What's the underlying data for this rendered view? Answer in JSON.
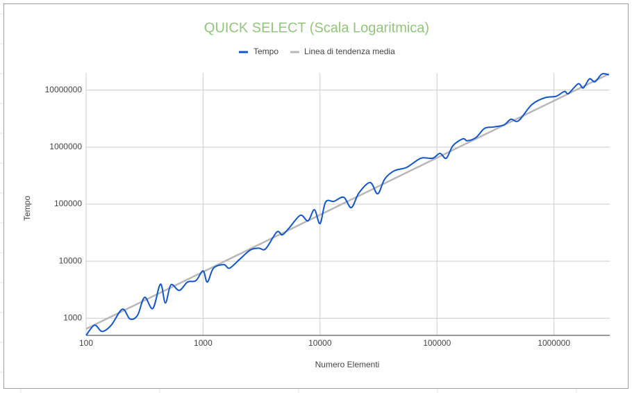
{
  "chart_data": {
    "type": "line",
    "title": "QUICK SELECT (Scala Logaritmica)",
    "x_label": "Numero Elementi",
    "y_label": "Tempo",
    "xscale": "log",
    "yscale": "log",
    "grid": true,
    "legend": "top",
    "x": [
      100,
      118,
      137,
      164,
      204,
      237,
      275,
      316,
      372,
      432,
      476,
      531,
      626,
      736,
      868,
      1000,
      1087,
      1228,
      1507,
      1683,
      2066,
      2536,
      2990,
      3430,
      4270,
      4760,
      5460,
      6790,
      7890,
      8950,
      10000,
      11160,
      13150,
      15930,
      18500,
      21500,
      26800,
      31100,
      35700,
      43200,
      55300,
      72700,
      91800,
      106000,
      120000,
      137000,
      167000,
      181000,
      216000,
      255000,
      304000,
      374000,
      428000,
      498000,
      646000,
      838000,
      1040000,
      1230000,
      1330000,
      1610000,
      1780000,
      2010000,
      2240000,
      2570000,
      2950000
    ],
    "series": [
      {
        "name": "Tempo",
        "color": "#1155cc",
        "values": [
          500,
          755,
          586,
          755,
          1440,
          970,
          1120,
          2320,
          1480,
          3960,
          1850,
          3850,
          3070,
          4300,
          4550,
          6750,
          4300,
          7550,
          8700,
          7550,
          10900,
          15700,
          16900,
          16500,
          32500,
          29000,
          38500,
          63800,
          51000,
          79800,
          45600,
          109000,
          112000,
          132000,
          86900,
          157000,
          239000,
          152000,
          275000,
          385000,
          443000,
          638000,
          638000,
          777000,
          638000,
          1060000,
          1400000,
          1290000,
          1480000,
          2130000,
          2250000,
          2450000,
          3080000,
          2900000,
          5550000,
          7340000,
          7780000,
          9460000,
          8700000,
          12900000,
          10900000,
          15700000,
          14000000,
          19100000,
          18500000
        ]
      },
      {
        "name": "Linea di tendenza media",
        "color": "#b7b7b7",
        "values": [
          650,
          767,
          891,
          1066,
          1326,
          1541,
          1788,
          2054,
          2418,
          2808,
          3094,
          3452,
          4069,
          4784,
          5642,
          6500,
          7066,
          7982,
          9796,
          10940,
          13429,
          16484,
          19435,
          22295,
          27755,
          30940,
          35490,
          44135,
          51285,
          58175,
          65000,
          72540,
          85475,
          103545,
          120250,
          139750,
          174200,
          202150,
          232050,
          280800,
          359450,
          472550,
          596700,
          689000,
          780000,
          890500,
          1085500,
          1176500,
          1404000,
          1657500,
          1976000,
          2431000,
          2782000,
          3237000,
          4199000,
          5447000,
          6760000,
          7995000,
          8645000,
          10465000,
          11570000,
          13065000,
          14560000,
          16705000,
          19175000
        ]
      }
    ],
    "xlim": [
      100,
      3000000
    ],
    "xticks": [
      100,
      1000,
      10000,
      100000,
      1000000
    ],
    "ylim": [
      500,
      20000000
    ],
    "yticks": [
      1000,
      10000,
      100000,
      1000000,
      10000000
    ]
  }
}
